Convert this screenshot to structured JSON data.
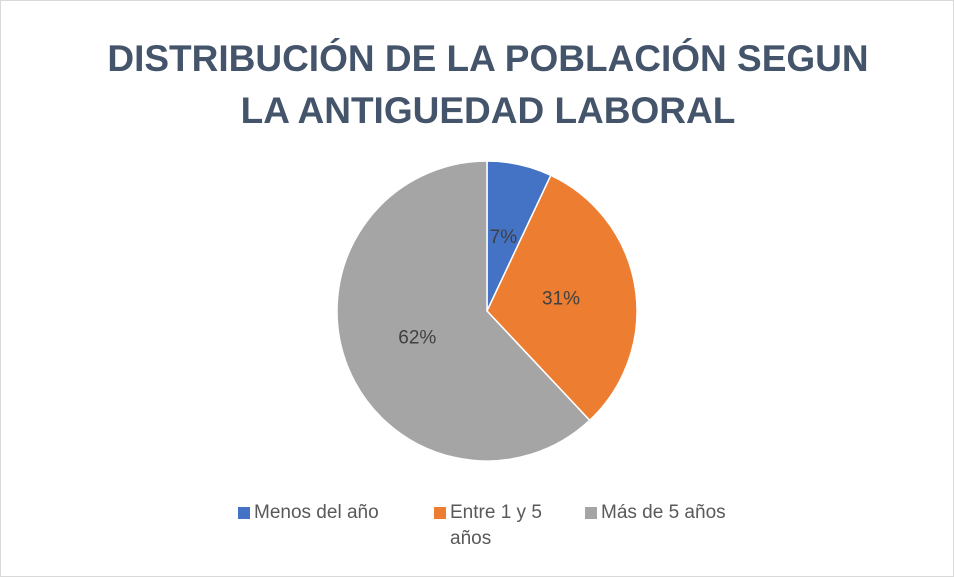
{
  "chart_data": {
    "type": "pie",
    "title": "DISTRIBUCIÓN DE LA POBLACIÓN SEGUN LA ANTIGUEDAD LABORAL",
    "categories": [
      "Menos del año",
      "Entre 1 y 5 años",
      "Más de 5 años"
    ],
    "values": [
      7,
      31,
      62
    ],
    "value_labels": [
      "7%",
      "31%",
      "62%"
    ],
    "colors": [
      "#4472c4",
      "#ed7d31",
      "#a5a5a5"
    ],
    "legend": "bottom"
  }
}
